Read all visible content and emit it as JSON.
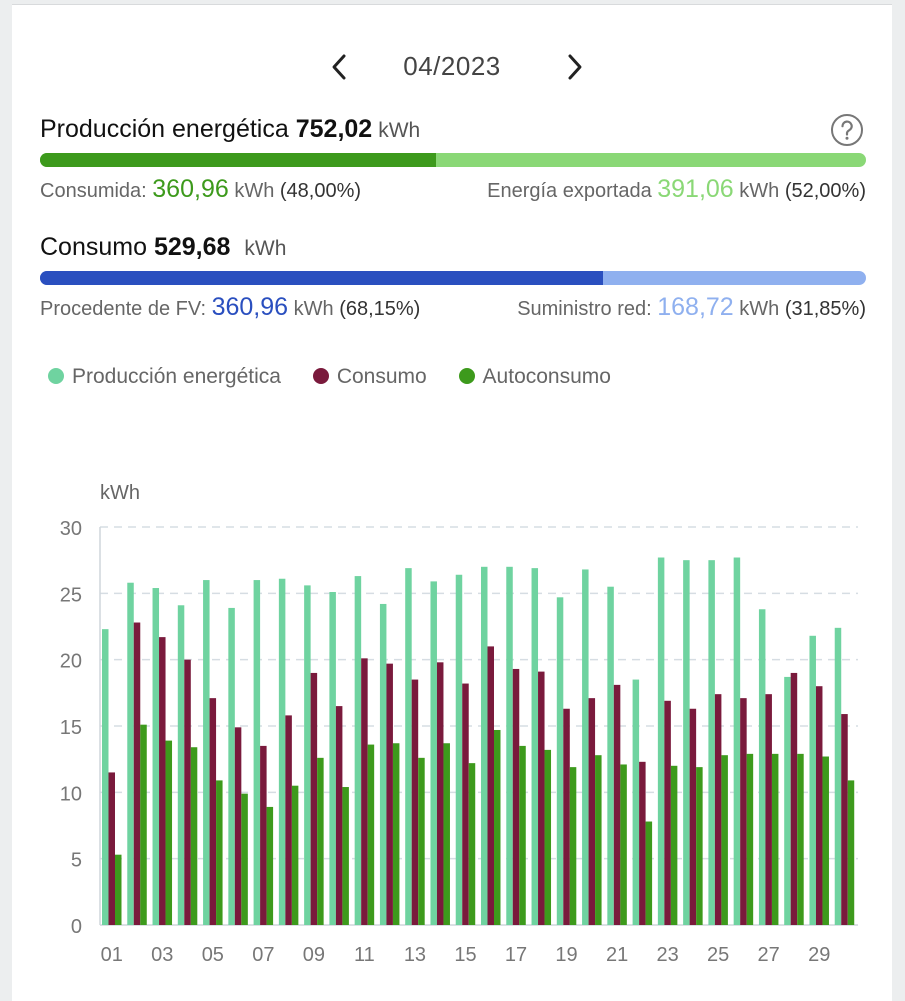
{
  "nav": {
    "month": "04/2023",
    "prev_icon": "chevron-left-icon",
    "next_icon": "chevron-right-icon"
  },
  "production": {
    "label": "Producción energética",
    "total": "752,02",
    "unit": "kWh",
    "consumed_label": "Consumida:",
    "consumed_value": "360,96",
    "consumed_unit": "kWh",
    "consumed_pct": "(48,00%)",
    "exported_label": "Energía exportada",
    "exported_value": "391,06",
    "exported_unit": "kWh",
    "exported_pct": "(52,00%)",
    "consumed_fraction": 0.48
  },
  "consumption": {
    "label": "Consumo",
    "total": "529,68",
    "unit": "kWh",
    "pv_label": "Procedente de FV:",
    "pv_value": "360,96",
    "pv_unit": "kWh",
    "pv_pct": "(68,15%)",
    "grid_label": "Suministro red:",
    "grid_value": "168,72",
    "grid_unit": "kWh",
    "grid_pct": "(31,85%)",
    "pv_fraction": 0.6815
  },
  "colors": {
    "production": "#6fd3a0",
    "consumption": "#7a1a3c",
    "selfconsumption": "#3d9a1c",
    "prod_bar_dark": "#3d9a1c",
    "prod_bar_light": "#8ad876",
    "cons_bar_dark": "#2a4fbf",
    "cons_bar_light": "#8fb0ef",
    "consumed_text": "#3d9a1c",
    "exported_text": "#8ad876",
    "pv_text": "#2a4fbf",
    "grid_text": "#8fb0ef"
  },
  "chart_data": {
    "type": "bar",
    "ylabel": "kWh",
    "ylim": [
      0,
      30
    ],
    "yticks": [
      "0",
      "5",
      "10",
      "15",
      "20",
      "25",
      "30"
    ],
    "grid": true,
    "legend_position": "top-left",
    "categories": [
      "01",
      "02",
      "03",
      "04",
      "05",
      "06",
      "07",
      "08",
      "09",
      "10",
      "11",
      "12",
      "13",
      "14",
      "15",
      "16",
      "17",
      "18",
      "19",
      "20",
      "21",
      "22",
      "23",
      "24",
      "25",
      "26",
      "27",
      "28",
      "29",
      "30"
    ],
    "xtick_labels": [
      "01",
      "03",
      "05",
      "07",
      "09",
      "11",
      "13",
      "15",
      "17",
      "19",
      "21",
      "23",
      "25",
      "27",
      "29"
    ],
    "series": [
      {
        "name": "Producción energética",
        "values": [
          22.3,
          25.8,
          25.4,
          24.1,
          26.0,
          23.9,
          26.0,
          26.1,
          25.6,
          25.1,
          26.3,
          24.2,
          26.9,
          25.9,
          26.4,
          27.0,
          27.0,
          26.9,
          24.7,
          26.8,
          25.5,
          18.5,
          27.7,
          27.5,
          27.5,
          27.7,
          23.8,
          18.7,
          21.8,
          22.4
        ]
      },
      {
        "name": "Consumo",
        "values": [
          11.5,
          22.8,
          21.7,
          20.0,
          17.1,
          14.9,
          13.5,
          15.8,
          19.0,
          16.5,
          20.1,
          19.7,
          18.5,
          19.8,
          18.2,
          21.0,
          19.3,
          19.1,
          16.3,
          17.1,
          18.1,
          12.3,
          16.9,
          16.3,
          17.4,
          17.1,
          17.4,
          19.0,
          18.0,
          15.9
        ]
      },
      {
        "name": "Autoconsumo",
        "values": [
          5.3,
          15.1,
          13.9,
          13.4,
          10.9,
          9.9,
          8.9,
          10.5,
          12.6,
          10.4,
          13.6,
          13.7,
          12.6,
          13.7,
          12.2,
          14.7,
          13.5,
          13.2,
          11.9,
          12.8,
          12.1,
          7.8,
          12.0,
          11.9,
          12.8,
          12.9,
          12.9,
          12.9,
          12.7,
          10.9
        ]
      }
    ]
  }
}
